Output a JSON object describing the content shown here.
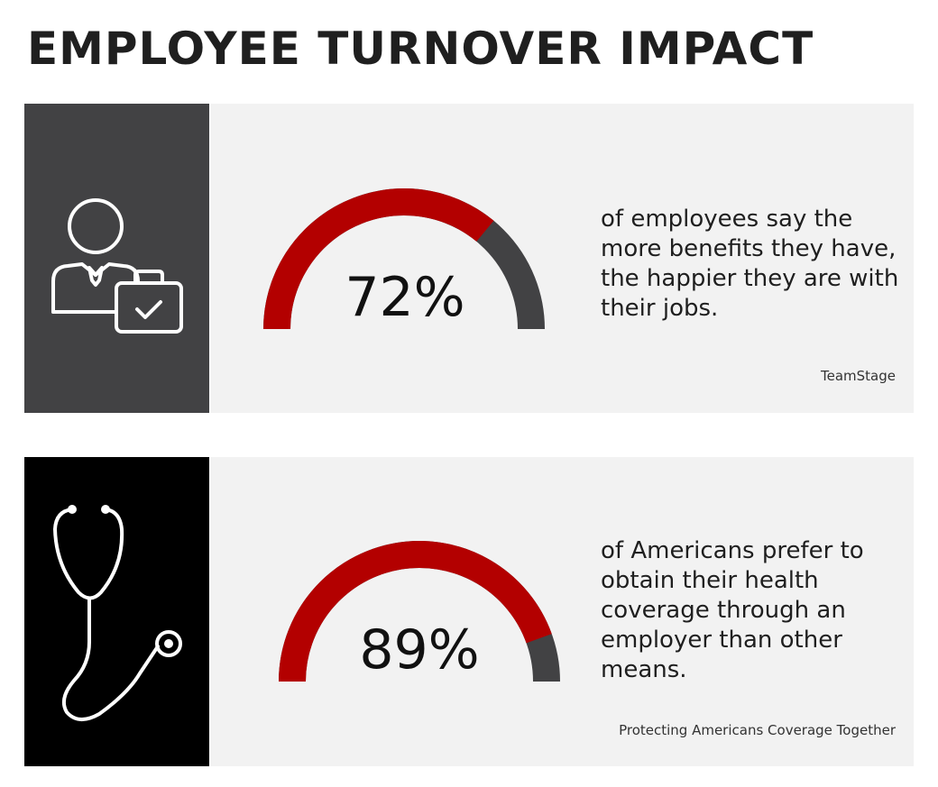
{
  "title": "EMPLOYEE TURNOVER IMPACT",
  "colors": {
    "accent_red": "#b30000",
    "dark_gray": "#424244",
    "panel_bg": "#f2f2f2",
    "black": "#000000"
  },
  "stats": [
    {
      "icon": "employee-briefcase-icon",
      "percent_label": "72%",
      "percent_value": 0.72,
      "description": "of employees say the more benefits they have, the happier they are with their jobs.",
      "source": "TeamStage"
    },
    {
      "icon": "stethoscope-icon",
      "percent_label": "89%",
      "percent_value": 0.89,
      "description": "of Americans prefer to obtain their health coverage through an employer than other means.",
      "source": "Protecting Americans Coverage Together"
    }
  ]
}
